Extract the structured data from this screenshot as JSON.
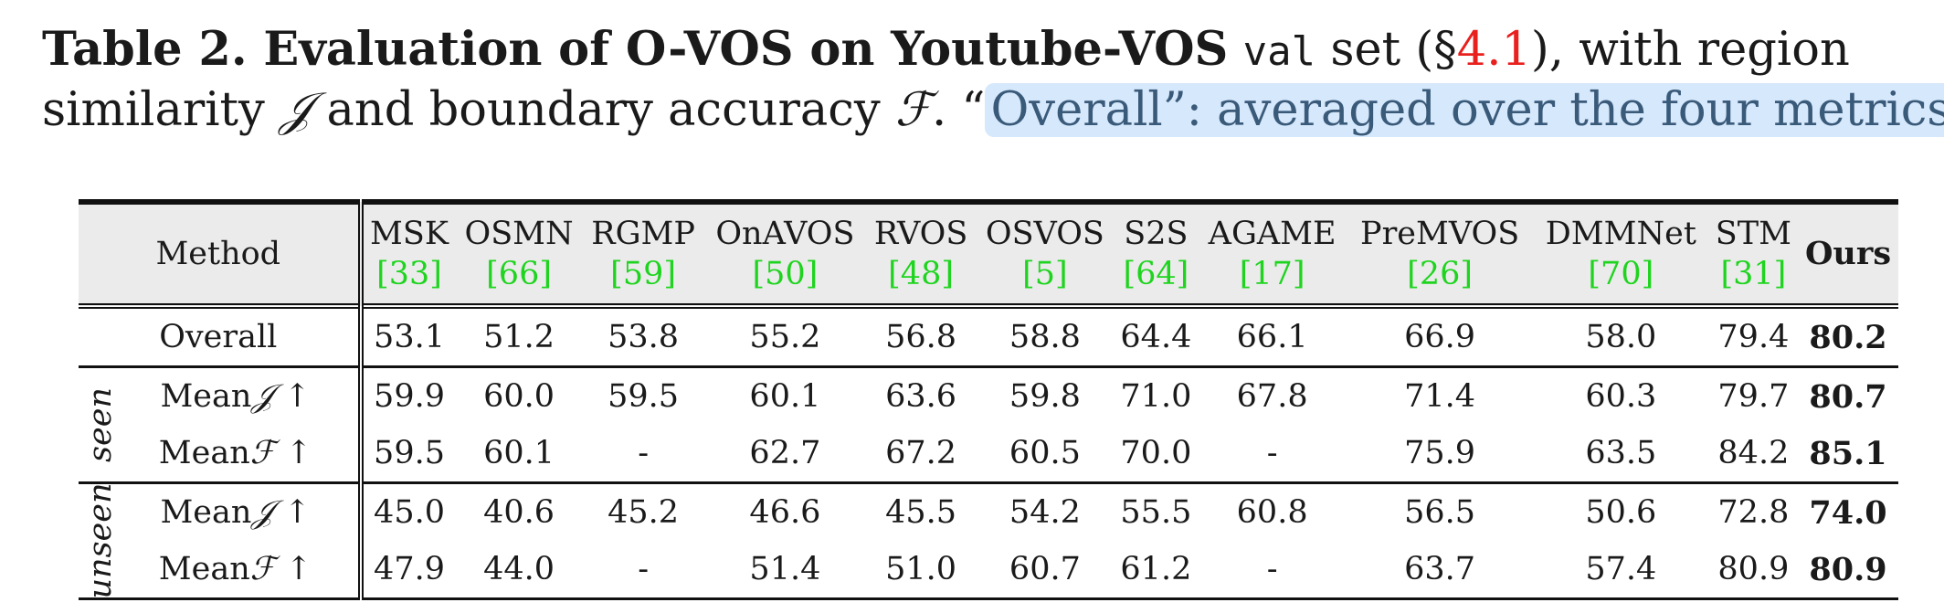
{
  "caption": {
    "line1_bold": "Table 2. Evaluation of O-VOS on Youtube-VOS",
    "line1_code": "val",
    "line1_mid": "set (§",
    "line1_ref": "4.1",
    "line1_end": "), with region",
    "line2_a": "similarity",
    "line2_J": "𝒥",
    "line2_b": "and boundary accuracy",
    "line2_F": "ℱ",
    "line2_c": ". “",
    "line2_hl": "Overall”: averaged over the four metrics."
  },
  "table": {
    "method_header": "Method",
    "columns": [
      {
        "name": "MSK",
        "cite": "[33]"
      },
      {
        "name": "OSMN",
        "cite": "[66]"
      },
      {
        "name": "RGMP",
        "cite": "[59]"
      },
      {
        "name": "OnAVOS",
        "cite": "[50]"
      },
      {
        "name": "RVOS",
        "cite": "[48]"
      },
      {
        "name": "OSVOS",
        "cite": "[5]"
      },
      {
        "name": "S2S",
        "cite": "[64]"
      },
      {
        "name": "AGAME",
        "cite": "[17]"
      },
      {
        "name": "PreMVOS",
        "cite": "[26]"
      },
      {
        "name": "DMMNet",
        "cite": "[70]"
      },
      {
        "name": "STM",
        "cite": "[31]"
      },
      {
        "name": "Ours",
        "cite": ""
      }
    ],
    "overall": {
      "label": "Overall",
      "values": [
        "53.1",
        "51.2",
        "53.8",
        "55.2",
        "56.8",
        "58.8",
        "64.4",
        "66.1",
        "66.9",
        "58.0",
        "79.4",
        "80.2"
      ]
    },
    "groups": [
      {
        "name": "seen",
        "rows": [
          {
            "label": "Mean",
            "sym": "𝒥",
            "arrow": "↑",
            "values": [
              "59.9",
              "60.0",
              "59.5",
              "60.1",
              "63.6",
              "59.8",
              "71.0",
              "67.8",
              "71.4",
              "60.3",
              "79.7",
              "80.7"
            ]
          },
          {
            "label": "Mean",
            "sym": "ℱ",
            "arrow": "↑",
            "values": [
              "59.5",
              "60.1",
              "-",
              "62.7",
              "67.2",
              "60.5",
              "70.0",
              "-",
              "75.9",
              "63.5",
              "84.2",
              "85.1"
            ]
          }
        ]
      },
      {
        "name": "unseen",
        "rows": [
          {
            "label": "Mean",
            "sym": "𝒥",
            "arrow": "↑",
            "values": [
              "45.0",
              "40.6",
              "45.2",
              "46.6",
              "45.5",
              "54.2",
              "55.5",
              "60.8",
              "56.5",
              "50.6",
              "72.8",
              "74.0"
            ]
          },
          {
            "label": "Mean",
            "sym": "ℱ",
            "arrow": "↑",
            "values": [
              "47.9",
              "44.0",
              "-",
              "51.4",
              "51.0",
              "60.7",
              "61.2",
              "-",
              "63.7",
              "57.4",
              "80.9",
              "80.9"
            ]
          }
        ]
      }
    ]
  }
}
